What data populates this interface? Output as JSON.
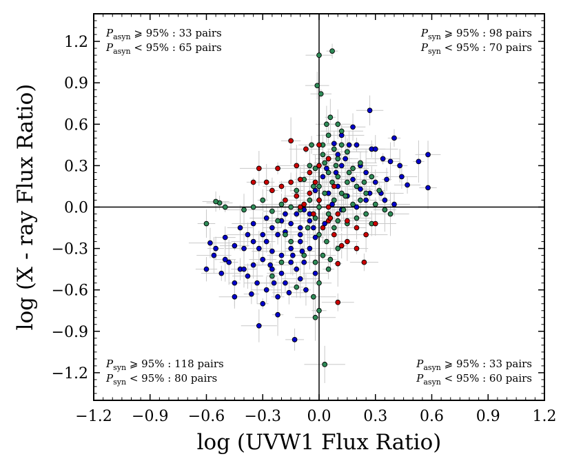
{
  "chart_data": {
    "type": "scatter",
    "title": "",
    "xlabel": "log (UVW1 Flux Ratio)",
    "ylabel": "log (X - ray Flux Ratio)",
    "xlim": [
      -1.2,
      1.2
    ],
    "ylim": [
      -1.4,
      1.4
    ],
    "x_ticks": [
      -1.2,
      -0.9,
      -0.6,
      -0.3,
      0.0,
      0.3,
      0.6,
      0.9,
      1.2
    ],
    "x_tick_labels": [
      "−1.2",
      "−0.9",
      "−0.6",
      "−0.3",
      "0.0",
      "0.3",
      "0.6",
      "0.9",
      "1.2"
    ],
    "y_ticks": [
      1.2,
      0.9,
      0.6,
      0.3,
      0.0,
      -0.3,
      -0.6,
      -0.9,
      -1.2
    ],
    "y_tick_labels": [
      "1.2",
      "0.9",
      "0.6",
      "0.3",
      "0.0",
      "−0.3",
      "−0.6",
      "−0.9",
      "−1.2"
    ],
    "reference_lines": {
      "x": 0.0,
      "y": 0.0
    },
    "annotations": [
      {
        "name": "quadrant-top-left",
        "anchor": "top-left",
        "lines": [
          {
            "sym": "P",
            "sub": "asyn",
            "text": " ⩾ 95% : 33 pairs"
          },
          {
            "sym": "P",
            "sub": "asyn",
            "text": " < 95% : 65 pairs"
          }
        ]
      },
      {
        "name": "quadrant-top-right",
        "anchor": "top-right",
        "lines": [
          {
            "sym": "P",
            "sub": "syn",
            "text": " ⩾ 95% : 98 pairs"
          },
          {
            "sym": "P",
            "sub": "syn",
            "text": " < 95% : 70 pairs"
          }
        ]
      },
      {
        "name": "quadrant-bottom-left",
        "anchor": "bottom-left",
        "lines": [
          {
            "sym": "P",
            "sub": "syn",
            "text": " ⩾ 95% : 118 pairs"
          },
          {
            "sym": "P",
            "sub": "syn",
            "text": " < 95% : 80 pairs"
          }
        ]
      },
      {
        "name": "quadrant-bottom-right",
        "anchor": "bottom-right",
        "lines": [
          {
            "sym": "P",
            "sub": "asyn",
            "text": " ⩾ 95% : 33 pairs"
          },
          {
            "sym": "P",
            "sub": "asyn",
            "text": " < 95% : 60 pairs"
          }
        ]
      }
    ],
    "series": [
      {
        "name": "blue",
        "color": "#0000cc",
        "points": [
          [
            0.27,
            0.7
          ],
          [
            0.4,
            0.5
          ],
          [
            0.58,
            0.38
          ],
          [
            0.53,
            0.33
          ],
          [
            0.44,
            0.22
          ],
          [
            0.38,
            0.33
          ],
          [
            0.34,
            0.35
          ],
          [
            0.28,
            0.42
          ],
          [
            0.2,
            0.45
          ],
          [
            0.15,
            0.4
          ],
          [
            0.08,
            0.46
          ],
          [
            0.25,
            0.25
          ],
          [
            0.3,
            0.18
          ],
          [
            0.33,
            0.1
          ],
          [
            0.22,
            0.13
          ],
          [
            0.18,
            0.2
          ],
          [
            0.12,
            0.3
          ],
          [
            0.05,
            0.35
          ],
          [
            0.1,
            0.15
          ],
          [
            0.15,
            0.08
          ],
          [
            0.25,
            0.05
          ],
          [
            0.35,
            0.05
          ],
          [
            0.58,
            0.14
          ],
          [
            0.47,
            0.16
          ],
          [
            0.4,
            0.02
          ],
          [
            0.02,
            0.22
          ],
          [
            0.05,
            0.1
          ],
          [
            0.0,
            0.05
          ],
          [
            -0.02,
            0.12
          ],
          [
            0.04,
            0.28
          ],
          [
            0.12,
            0.52
          ],
          [
            0.18,
            0.58
          ],
          [
            -0.05,
            -0.1
          ],
          [
            -0.1,
            -0.15
          ],
          [
            -0.15,
            -0.12
          ],
          [
            -0.2,
            -0.1
          ],
          [
            -0.25,
            -0.15
          ],
          [
            -0.3,
            -0.2
          ],
          [
            -0.35,
            -0.25
          ],
          [
            -0.4,
            -0.3
          ],
          [
            -0.45,
            -0.28
          ],
          [
            -0.5,
            -0.22
          ],
          [
            -0.55,
            -0.3
          ],
          [
            -0.56,
            -0.35
          ],
          [
            -0.48,
            -0.4
          ],
          [
            -0.42,
            -0.45
          ],
          [
            -0.38,
            -0.5
          ],
          [
            -0.45,
            -0.55
          ],
          [
            -0.33,
            -0.55
          ],
          [
            -0.28,
            -0.6
          ],
          [
            -0.22,
            -0.65
          ],
          [
            -0.18,
            -0.55
          ],
          [
            -0.12,
            -0.45
          ],
          [
            -0.08,
            -0.4
          ],
          [
            -0.05,
            -0.3
          ],
          [
            -0.02,
            -0.22
          ],
          [
            -0.1,
            -0.25
          ],
          [
            -0.15,
            -0.3
          ],
          [
            -0.2,
            -0.35
          ],
          [
            -0.25,
            -0.32
          ],
          [
            -0.3,
            -0.38
          ],
          [
            -0.35,
            -0.42
          ],
          [
            -0.28,
            -0.25
          ],
          [
            -0.22,
            -0.2
          ],
          [
            -0.18,
            -0.18
          ],
          [
            -0.12,
            -0.05
          ],
          [
            -0.08,
            -0.02
          ],
          [
            -0.03,
            -0.15
          ],
          [
            -0.15,
            -0.4
          ],
          [
            -0.25,
            -0.45
          ],
          [
            -0.4,
            -0.45
          ],
          [
            -0.5,
            -0.38
          ],
          [
            -0.32,
            -0.86
          ],
          [
            -0.13,
            -0.96
          ],
          [
            -0.22,
            -0.78
          ],
          [
            -0.3,
            -0.7
          ],
          [
            -0.36,
            -0.63
          ],
          [
            -0.07,
            -0.6
          ],
          [
            -0.02,
            -0.48
          ],
          [
            -0.1,
            -0.2
          ],
          [
            -0.05,
            -0.05
          ],
          [
            -0.18,
            -0.05
          ],
          [
            -0.28,
            -0.08
          ],
          [
            -0.35,
            -0.12
          ],
          [
            -0.42,
            -0.15
          ],
          [
            -0.38,
            -0.2
          ],
          [
            -0.32,
            -0.3
          ],
          [
            -0.26,
            -0.42
          ],
          [
            -0.2,
            -0.48
          ],
          [
            -0.14,
            -0.35
          ],
          [
            -0.09,
            -0.32
          ],
          [
            -0.24,
            -0.55
          ],
          [
            -0.16,
            -0.62
          ],
          [
            -0.1,
            -0.52
          ],
          [
            0.03,
            -0.12
          ],
          [
            0.07,
            0.02
          ],
          [
            0.09,
            0.25
          ],
          [
            0.14,
            0.35
          ],
          [
            0.22,
            0.3
          ],
          [
            0.27,
            0.1
          ],
          [
            0.16,
            0.45
          ],
          [
            0.1,
            0.38
          ],
          [
            0.3,
            0.42
          ],
          [
            0.36,
            0.2
          ],
          [
            0.43,
            0.3
          ],
          [
            0.2,
            0.0
          ],
          [
            0.12,
            -0.02
          ],
          [
            -0.45,
            -0.65
          ],
          [
            -0.52,
            -0.48
          ],
          [
            -0.6,
            -0.45
          ],
          [
            -0.58,
            -0.26
          ]
        ]
      },
      {
        "name": "green",
        "color": "#2e8b57",
        "points": [
          [
            0.07,
            1.13
          ],
          [
            0.0,
            1.1
          ],
          [
            -0.01,
            0.88
          ],
          [
            0.01,
            0.82
          ],
          [
            0.06,
            0.65
          ],
          [
            0.1,
            0.6
          ],
          [
            0.12,
            0.55
          ],
          [
            0.05,
            0.52
          ],
          [
            0.02,
            0.45
          ],
          [
            0.08,
            0.42
          ],
          [
            0.15,
            0.4
          ],
          [
            0.1,
            0.35
          ],
          [
            0.03,
            0.32
          ],
          [
            -0.02,
            0.28
          ],
          [
            0.05,
            0.25
          ],
          [
            0.1,
            0.22
          ],
          [
            0.15,
            0.18
          ],
          [
            0.2,
            0.15
          ],
          [
            0.25,
            0.1
          ],
          [
            0.22,
            0.05
          ],
          [
            0.18,
            0.02
          ],
          [
            0.13,
            -0.02
          ],
          [
            0.08,
            0.05
          ],
          [
            0.03,
            0.1
          ],
          [
            -0.03,
            0.15
          ],
          [
            -0.08,
            0.2
          ],
          [
            -0.12,
            0.12
          ],
          [
            -0.05,
            0.05
          ],
          [
            0.0,
            0.0
          ],
          [
            0.05,
            -0.05
          ],
          [
            0.1,
            -0.1
          ],
          [
            0.15,
            -0.12
          ],
          [
            0.2,
            -0.08
          ],
          [
            0.25,
            -0.05
          ],
          [
            0.3,
            0.02
          ],
          [
            0.35,
            -0.02
          ],
          [
            0.38,
            -0.05
          ],
          [
            -0.1,
            -0.02
          ],
          [
            -0.15,
            0.0
          ],
          [
            -0.2,
            0.02
          ],
          [
            -0.25,
            -0.03
          ],
          [
            -0.3,
            0.05
          ],
          [
            -0.35,
            0.0
          ],
          [
            -0.4,
            -0.02
          ],
          [
            -0.5,
            0.0
          ],
          [
            -0.53,
            0.03
          ],
          [
            -0.55,
            0.04
          ],
          [
            -0.6,
            -0.12
          ],
          [
            -0.02,
            -0.08
          ],
          [
            -0.06,
            -0.15
          ],
          [
            0.0,
            -0.2
          ],
          [
            0.04,
            -0.25
          ],
          [
            0.02,
            -0.35
          ],
          [
            -0.02,
            -0.4
          ],
          [
            0.05,
            -0.45
          ],
          [
            0.0,
            -0.55
          ],
          [
            -0.03,
            -0.65
          ],
          [
            0.0,
            -0.75
          ],
          [
            -0.02,
            -0.8
          ],
          [
            0.03,
            -1.14
          ],
          [
            0.08,
            -0.15
          ],
          [
            0.12,
            0.1
          ],
          [
            0.18,
            0.28
          ],
          [
            0.22,
            0.32
          ],
          [
            0.0,
            0.15
          ],
          [
            -0.05,
            0.3
          ],
          [
            0.07,
            0.18
          ],
          [
            0.12,
            0.45
          ],
          [
            0.28,
            0.22
          ],
          [
            0.32,
            0.12
          ],
          [
            0.1,
            -0.3
          ],
          [
            -0.08,
            -0.35
          ],
          [
            -0.2,
            -0.4
          ],
          [
            -0.25,
            -0.5
          ],
          [
            -0.12,
            -0.58
          ],
          [
            -0.15,
            -0.25
          ],
          [
            0.06,
            -0.38
          ],
          [
            0.02,
            0.38
          ],
          [
            0.16,
            0.25
          ],
          [
            0.24,
            0.18
          ],
          [
            0.04,
            0.6
          ],
          [
            -0.04,
            0.45
          ],
          [
            0.14,
            0.08
          ],
          [
            0.28,
            -0.12
          ],
          [
            -0.18,
            -0.2
          ],
          [
            -0.22,
            -0.1
          ],
          [
            0.09,
            0.3
          ]
        ]
      },
      {
        "name": "red",
        "color": "#cc0000",
        "points": [
          [
            -0.32,
            0.28
          ],
          [
            -0.28,
            0.18
          ],
          [
            -0.25,
            0.12
          ],
          [
            -0.2,
            0.15
          ],
          [
            -0.15,
            0.18
          ],
          [
            -0.1,
            0.2
          ],
          [
            -0.05,
            0.1
          ],
          [
            -0.18,
            0.05
          ],
          [
            -0.12,
            0.08
          ],
          [
            -0.08,
            0.02
          ],
          [
            0.0,
            0.05
          ],
          [
            0.05,
            0.0
          ],
          [
            0.1,
            -0.05
          ],
          [
            0.15,
            -0.1
          ],
          [
            0.2,
            -0.15
          ],
          [
            0.25,
            -0.2
          ],
          [
            0.3,
            -0.12
          ],
          [
            0.15,
            -0.25
          ],
          [
            0.05,
            -0.1
          ],
          [
            0.02,
            -0.15
          ],
          [
            0.08,
            -0.2
          ],
          [
            0.12,
            -0.28
          ],
          [
            0.2,
            -0.3
          ],
          [
            0.24,
            -0.4
          ],
          [
            0.1,
            -0.41
          ],
          [
            0.1,
            -0.69
          ],
          [
            -0.05,
            0.25
          ],
          [
            0.0,
            0.3
          ],
          [
            -0.02,
            0.18
          ],
          [
            -0.22,
            0.28
          ],
          [
            -0.35,
            0.18
          ],
          [
            -0.12,
            0.3
          ],
          [
            -0.07,
            0.42
          ],
          [
            0.05,
            0.35
          ],
          [
            -0.15,
            0.48
          ],
          [
            0.0,
            0.45
          ],
          [
            0.08,
            0.15
          ],
          [
            -0.1,
            0.0
          ],
          [
            -0.03,
            -0.05
          ],
          [
            0.06,
            -0.08
          ]
        ]
      }
    ]
  }
}
